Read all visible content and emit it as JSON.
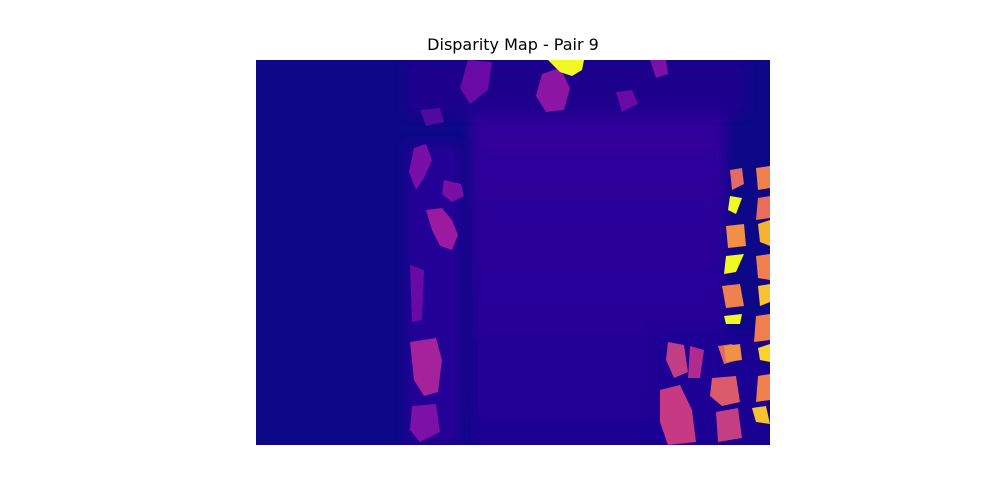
{
  "chart_data": {
    "type": "heatmap",
    "title": "Disparity Map - Pair 9",
    "xlabel": "",
    "ylabel": "",
    "colormap": "plasma",
    "axes_visible": false,
    "grid": false,
    "legend": "none",
    "colors": {
      "background_low": "#0d0887",
      "center_region": "#2f049b",
      "mid_purple": "#7e03a8",
      "magenta": "#b12a90",
      "pink": "#cc4778",
      "orange": "#f0804d",
      "yellow": "#f0f921"
    },
    "value_range": [
      0,
      1
    ],
    "regions": [
      {
        "id": "background",
        "level": 0.0
      },
      {
        "id": "center-block",
        "level": 0.1
      },
      {
        "id": "left-strip",
        "level": 0.35
      },
      {
        "id": "top-blobs",
        "level": 0.3
      },
      {
        "id": "right-lower-patches",
        "level": 0.5
      },
      {
        "id": "right-edge-orange-patches",
        "level": 0.75
      },
      {
        "id": "right-edge-yellow-patches",
        "level": 0.98
      },
      {
        "id": "top-yellow-spot",
        "level": 1.0
      }
    ]
  }
}
